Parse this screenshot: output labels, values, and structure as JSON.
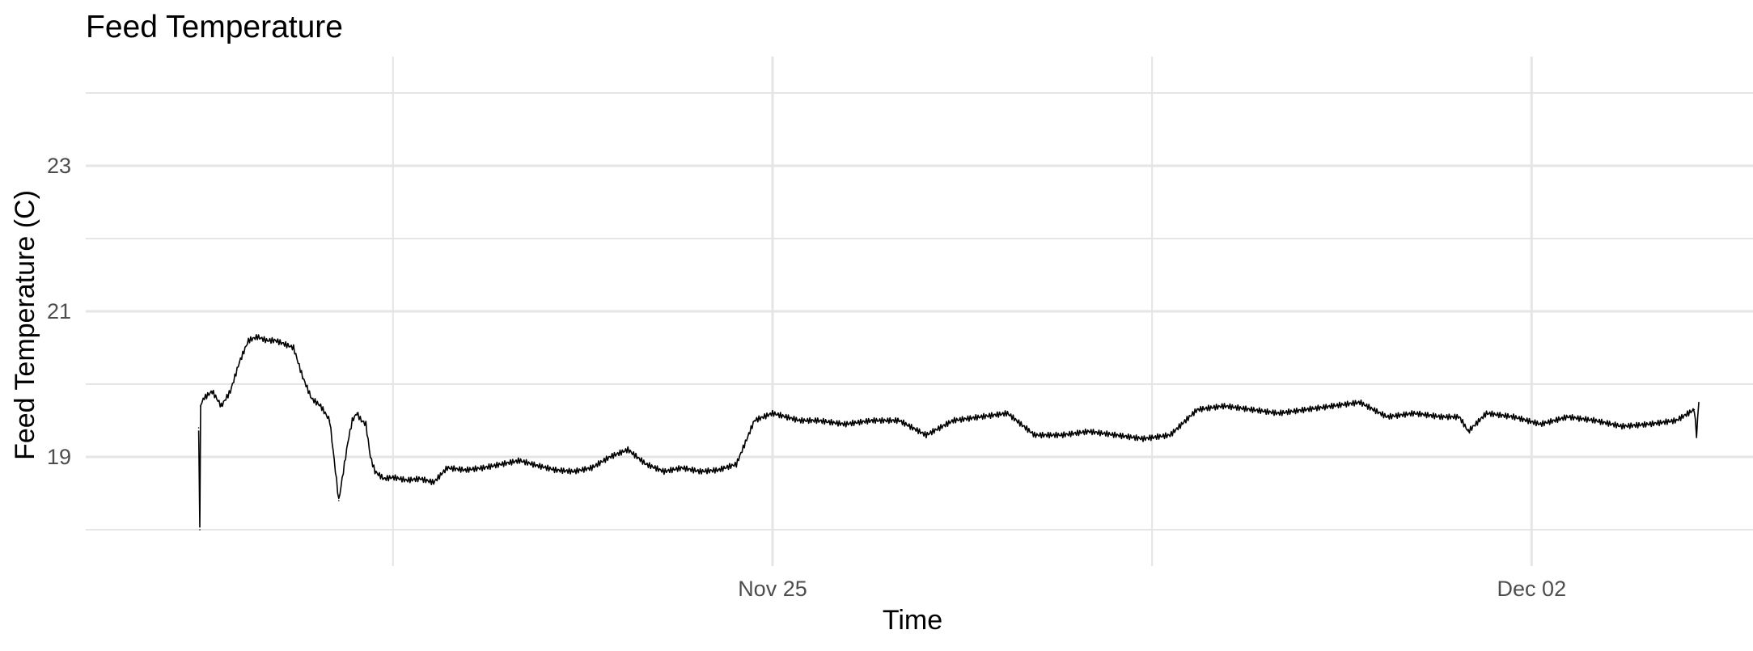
{
  "chart_data": {
    "type": "line",
    "title": "Feed Temperature",
    "xlabel": "Time",
    "ylabel": "Feed Temperature (C)",
    "x_ticks": [
      {
        "date": "2019-11-25",
        "label": "Nov 25"
      },
      {
        "date": "2019-12-02",
        "label": "Dec 02"
      }
    ],
    "y_ticks": [
      19,
      21,
      23
    ],
    "xlim": [
      "2019-11-18T16:00",
      "2019-12-04T01:00"
    ],
    "ylim": [
      17.5,
      24.5
    ],
    "grid": true,
    "legend": "none",
    "series": [
      {
        "color": "#000000",
        "x": [
          "2019-11-19T17:00",
          "2019-11-19T17:15",
          "2019-11-19T17:25",
          "2019-11-19T18:00",
          "2019-11-19T20:00",
          "2019-11-19T22:00",
          "2019-11-20T00:00",
          "2019-11-20T02:00",
          "2019-11-20T04:00",
          "2019-11-20T06:00",
          "2019-11-20T08:00",
          "2019-11-20T10:00",
          "2019-11-20T12:00",
          "2019-11-20T14:00",
          "2019-11-20T16:00",
          "2019-11-20T18:00",
          "2019-11-20T20:00",
          "2019-11-20T22:00",
          "2019-11-21T00:00",
          "2019-11-21T02:00",
          "2019-11-21T03:00",
          "2019-11-21T04:00",
          "2019-11-21T05:00",
          "2019-11-21T06:00",
          "2019-11-21T07:00",
          "2019-11-21T08:00",
          "2019-11-21T09:00",
          "2019-11-21T10:00",
          "2019-11-21T12:00",
          "2019-11-21T15:00",
          "2019-11-21T18:00",
          "2019-11-21T21:00",
          "2019-11-22T00:00",
          "2019-11-22T04:00",
          "2019-11-22T08:00",
          "2019-11-22T12:00",
          "2019-11-22T16:00",
          "2019-11-22T20:00",
          "2019-11-23T00:00",
          "2019-11-23T04:00",
          "2019-11-23T08:00",
          "2019-11-23T12:00",
          "2019-11-23T16:00",
          "2019-11-23T20:00",
          "2019-11-24T00:00",
          "2019-11-24T04:00",
          "2019-11-24T08:00",
          "2019-11-24T12:00",
          "2019-11-24T16:00",
          "2019-11-24T20:00",
          "2019-11-25T00:00",
          "2019-11-25T03:00",
          "2019-11-25T06:00",
          "2019-11-25T10:00",
          "2019-11-25T16:00",
          "2019-11-25T22:00",
          "2019-11-26T04:00",
          "2019-11-26T10:00",
          "2019-11-26T16:00",
          "2019-11-26T22:00",
          "2019-11-27T04:00",
          "2019-11-27T10:00",
          "2019-11-27T16:00",
          "2019-11-27T22:00",
          "2019-11-28T04:00",
          "2019-11-28T10:00",
          "2019-11-28T16:00",
          "2019-11-28T22:00",
          "2019-11-29T04:00",
          "2019-11-29T10:00",
          "2019-11-29T16:00",
          "2019-11-29T22:00",
          "2019-11-30T04:00",
          "2019-11-30T10:00",
          "2019-11-30T16:00",
          "2019-11-30T22:00",
          "2019-12-01T04:00",
          "2019-12-01T08:00",
          "2019-12-01T10:00",
          "2019-12-01T14:00",
          "2019-12-01T20:00",
          "2019-12-02T02:00",
          "2019-12-02T08:00",
          "2019-12-02T14:00",
          "2019-12-02T20:00",
          "2019-12-03T02:00",
          "2019-12-03T08:00",
          "2019-12-03T12:00",
          "2019-12-03T12:30",
          "2019-12-03T13:00"
        ],
        "y": [
          19.4,
          18.0,
          19.7,
          19.8,
          19.9,
          19.7,
          19.9,
          20.3,
          20.6,
          20.65,
          20.6,
          20.6,
          20.55,
          20.5,
          20.1,
          19.8,
          19.7,
          19.5,
          18.4,
          19.2,
          19.5,
          19.6,
          19.5,
          19.45,
          19.0,
          18.8,
          18.75,
          18.7,
          18.72,
          18.68,
          18.7,
          18.65,
          18.85,
          18.82,
          18.85,
          18.9,
          18.95,
          18.88,
          18.82,
          18.8,
          18.85,
          19.0,
          19.1,
          18.9,
          18.8,
          18.85,
          18.8,
          18.82,
          18.9,
          19.5,
          19.6,
          19.55,
          19.5,
          19.5,
          19.45,
          19.5,
          19.5,
          19.3,
          19.5,
          19.55,
          19.6,
          19.3,
          19.3,
          19.35,
          19.3,
          19.25,
          19.3,
          19.65,
          19.7,
          19.65,
          19.6,
          19.65,
          19.7,
          19.75,
          19.55,
          19.6,
          19.55,
          19.55,
          19.35,
          19.6,
          19.55,
          19.45,
          19.55,
          19.5,
          19.42,
          19.45,
          19.5,
          19.65,
          19.3,
          19.75
        ]
      }
    ]
  }
}
